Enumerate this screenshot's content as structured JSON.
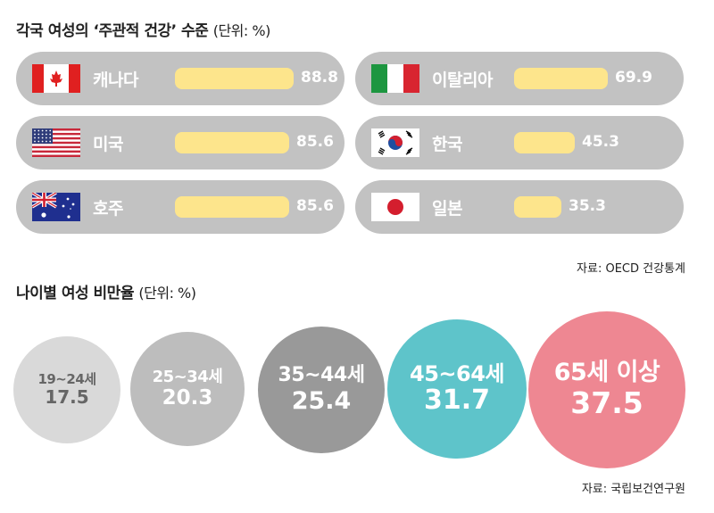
{
  "section1": {
    "title": "각국 여성의 ‘주관적 건강’ 수준",
    "unit": "(단위: %)",
    "source": "자료: OECD 건강통계"
  },
  "section2": {
    "title": "나이별 여성 비만율",
    "unit": "(단위: %)",
    "source": "자료: 국립보건연구원"
  },
  "chart_data": [
    {
      "type": "bar",
      "title": "각국 여성의 ‘주관적 건강’ 수준",
      "unit": "(단위: %)",
      "categories": [
        "캐나다",
        "미국",
        "호주",
        "이탈리아",
        "한국",
        "일본"
      ],
      "values": [
        88.8,
        85.6,
        85.6,
        69.9,
        45.3,
        35.3
      ],
      "labels": [
        "88.8",
        "85.6",
        "85.6",
        "69.9",
        "45.3",
        "35.3"
      ],
      "flags": [
        "canada-flag",
        "usa-flag",
        "australia-flag",
        "italy-flag",
        "korea-flag",
        "japan-flag"
      ],
      "bar_color": "#fde58c",
      "pill_color": "#c2c2c2"
    },
    {
      "type": "bubble",
      "title": "나이별 여성 비만율",
      "unit": "(단위: %)",
      "categories": [
        "19~24세",
        "25~34세",
        "35~44세",
        "45~64세",
        "65세 이상"
      ],
      "values": [
        17.5,
        20.3,
        25.4,
        31.7,
        37.5
      ],
      "labels": [
        "17.5",
        "20.3",
        "25.4",
        "31.7",
        "37.5"
      ],
      "colors": [
        "#d9d9d9",
        "#bdbdbd",
        "#999999",
        "#5ec4ca",
        "#ee8792"
      ]
    }
  ]
}
